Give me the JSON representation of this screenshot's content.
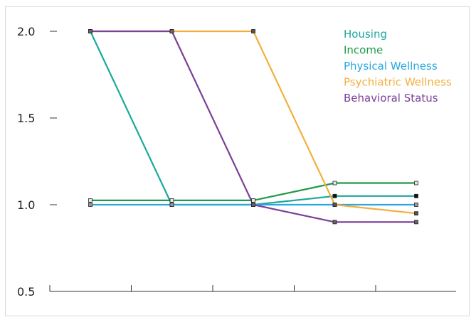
{
  "chart_data": {
    "type": "line",
    "x": [
      1,
      2,
      3,
      4,
      5
    ],
    "ylim": [
      0.5,
      2.0
    ],
    "yticks": [
      "2.0",
      "1.5",
      "1.0",
      "0.5"
    ],
    "grid": false,
    "legend_position": "top-right",
    "series": [
      {
        "name": "Housing",
        "color": "#1aa89d",
        "marker_fill": "#111111",
        "values": [
          2.0,
          1.0,
          1.0,
          1.05,
          1.05
        ]
      },
      {
        "name": "Income",
        "color": "#1e9a48",
        "marker_fill": "#e6e6e6",
        "values": [
          1.025,
          1.025,
          1.025,
          1.125,
          1.125
        ]
      },
      {
        "name": "Physical Wellness",
        "color": "#2aa8dd",
        "marker_fill": "#9a9a9a",
        "values": [
          1.0,
          1.0,
          1.0,
          1.0,
          1.0
        ]
      },
      {
        "name": "Psychiatric Wellness",
        "color": "#f4ae3d",
        "marker_fill": "#555555",
        "values": [
          2.0,
          2.0,
          2.0,
          1.0,
          0.95
        ]
      },
      {
        "name": "Behavioral Status",
        "color": "#7b3f98",
        "marker_fill": "#666666",
        "values": [
          2.0,
          2.0,
          1.0,
          0.9,
          0.9
        ]
      }
    ]
  }
}
